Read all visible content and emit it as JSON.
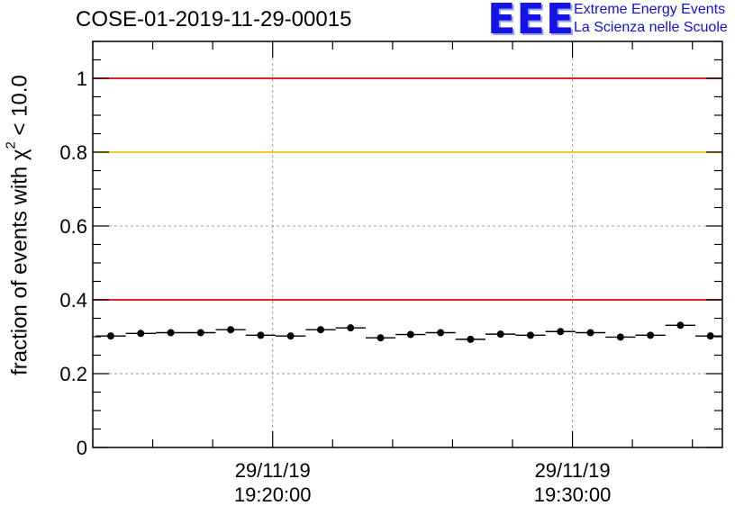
{
  "chart_data": {
    "type": "scatter",
    "title": "COSE-01-2019-11-29-00015",
    "ylabel": {
      "main": "fraction of events with χ",
      "sup": "2",
      "tail": " < 10.0"
    },
    "ylim": [
      0,
      1.1
    ],
    "yticks": [
      "0",
      "0.2",
      "0.4",
      "0.6",
      "0.8",
      "1"
    ],
    "ytick_values": [
      0,
      0.2,
      0.4,
      0.6,
      0.8,
      1.0
    ],
    "xlim_minutes": [
      19.14,
      19.35
    ],
    "xticks": [
      {
        "minutes": 19.2,
        "date": "29/11/19",
        "time": "19:20:00"
      },
      {
        "minutes": 19.3,
        "date": "29/11/19",
        "time": "19:30:00"
      }
    ],
    "grid": true,
    "reference_lines": [
      {
        "y": 1.0,
        "color": "#e00000"
      },
      {
        "y": 0.8,
        "color": "#ffc000"
      },
      {
        "y": 0.4,
        "color": "#e00000"
      }
    ],
    "series": [
      {
        "bin_width_min": 0.01,
        "x_center_min": [
          19.146,
          19.156,
          19.166,
          19.176,
          19.186,
          19.196,
          19.206,
          19.216,
          19.226,
          19.236,
          19.246,
          19.256,
          19.266,
          19.276,
          19.286,
          19.296,
          19.306,
          19.316,
          19.326,
          19.336,
          19.346
        ],
        "values": [
          0.302,
          0.309,
          0.311,
          0.311,
          0.319,
          0.304,
          0.302,
          0.319,
          0.324,
          0.297,
          0.306,
          0.311,
          0.293,
          0.307,
          0.304,
          0.314,
          0.311,
          0.299,
          0.304,
          0.331,
          0.302
        ],
        "color": "#000000"
      }
    ]
  },
  "logo": {
    "mark": "EEE",
    "line1": "Extreme Energy Events",
    "line2": "La Scienza nelle Scuole"
  }
}
